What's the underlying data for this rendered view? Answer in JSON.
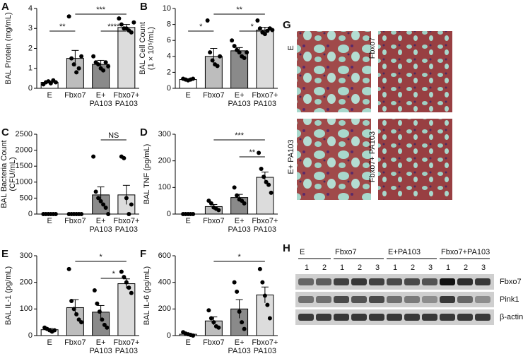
{
  "chart_data": [
    {
      "type": "bar",
      "panel": "A",
      "ylabel": [
        "BAL Protein (mg/mL)"
      ],
      "categories": [
        "E",
        "Fbxo7",
        "E+ PA103",
        "Fbxo7+ PA103"
      ],
      "values": [
        0.3,
        1.5,
        1.2,
        3.05
      ],
      "errors": [
        0.07,
        0.4,
        0.2,
        0.15
      ],
      "colors": [
        "#ffffff",
        "#bdbdbd",
        "#8a8a8a",
        "#dcdcdc"
      ],
      "points": [
        [
          0.2,
          0.3,
          0.35,
          0.25,
          0.4,
          0.3
        ],
        [
          3.6,
          1.5,
          1.2,
          0.8,
          1.0,
          1.6
        ],
        [
          1.6,
          1.3,
          1.2,
          1.0,
          0.9,
          1.3,
          1.1
        ],
        [
          3.5,
          3.2,
          3.0,
          3.0,
          2.9,
          2.8,
          3.3
        ]
      ],
      "ylim": [
        0,
        4
      ],
      "yticks": [
        0,
        1,
        2,
        3,
        4
      ],
      "significance": [
        {
          "from": 1,
          "to": 3,
          "label": "***"
        },
        {
          "from": 0,
          "to": 1,
          "label": "**"
        },
        {
          "from": 2,
          "to": 3,
          "label": "****"
        }
      ]
    },
    {
      "type": "bar",
      "panel": "B",
      "ylabel": [
        "BAL Cell Count",
        "(1 × 10⁵/mL)"
      ],
      "categories": [
        "E",
        "Fbxo7",
        "E+ PA103",
        "Fbxo7+ PA103"
      ],
      "values": [
        1.1,
        4.0,
        4.7,
        7.3
      ],
      "errors": [
        0.05,
        1.0,
        0.4,
        0.35
      ],
      "colors": [
        "#ffffff",
        "#bdbdbd",
        "#8a8a8a",
        "#dcdcdc"
      ],
      "points": [
        [
          1.2,
          1.1,
          1.0,
          1.1,
          1.2
        ],
        [
          8.5,
          4.5,
          3.5,
          3.0,
          2.8,
          4.0
        ],
        [
          6.0,
          5.3,
          4.8,
          4.5,
          4.0,
          3.8,
          4.5
        ],
        [
          8.5,
          7.5,
          7.0,
          6.8,
          7.2,
          7.5,
          7.3
        ]
      ],
      "ylim": [
        0,
        10
      ],
      "yticks": [
        0,
        2,
        4,
        6,
        8,
        10
      ],
      "significance": [
        {
          "from": 1,
          "to": 3,
          "label": "**"
        },
        {
          "from": 0,
          "to": 1,
          "label": "*"
        },
        {
          "from": 2,
          "to": 3,
          "label": "*"
        }
      ]
    },
    {
      "type": "bar",
      "panel": "C",
      "ylabel": [
        "BAL Bacteria Count",
        "(CFU/mL)"
      ],
      "categories": [
        "E",
        "Fbxo7",
        "E+ PA103",
        "Fbxo7+ PA103"
      ],
      "values": [
        0,
        0,
        600,
        600
      ],
      "errors": [
        0,
        0,
        250,
        300
      ],
      "colors": [
        "#ffffff",
        "#bdbdbd",
        "#8a8a8a",
        "#dcdcdc"
      ],
      "points": [
        [
          0,
          0,
          0,
          0,
          0,
          0
        ],
        [
          0,
          0,
          0,
          0,
          0,
          0
        ],
        [
          1800,
          700,
          500,
          400,
          300,
          200,
          0
        ],
        [
          1800,
          1750,
          500,
          0,
          300
        ]
      ],
      "ylim": [
        0,
        2500
      ],
      "yticks": [
        0,
        500,
        1000,
        1500,
        2000,
        2500
      ],
      "significance": [
        {
          "from": 2,
          "to": 3,
          "label": "NS"
        }
      ]
    },
    {
      "type": "bar",
      "panel": "D",
      "ylabel": [
        "BAL TNF (pg/mL)"
      ],
      "categories": [
        "E",
        "Fbxo7",
        "E+ PA103",
        "Fbxo7+ PA103"
      ],
      "values": [
        0,
        28,
        62,
        138
      ],
      "errors": [
        1,
        8,
        12,
        20
      ],
      "colors": [
        "#ffffff",
        "#bdbdbd",
        "#8a8a8a",
        "#dcdcdc"
      ],
      "points": [
        [
          0,
          0,
          0,
          0,
          0
        ],
        [
          50,
          40,
          25,
          20,
          15
        ],
        [
          100,
          70,
          55,
          50,
          40
        ],
        [
          230,
          170,
          140,
          120,
          110,
          80
        ]
      ],
      "ylim": [
        0,
        300
      ],
      "yticks": [
        0,
        100,
        200,
        300
      ],
      "significance": [
        {
          "from": 1,
          "to": 3,
          "label": "***"
        },
        {
          "from": 2,
          "to": 3,
          "label": "**"
        }
      ]
    },
    {
      "type": "bar",
      "panel": "E",
      "ylabel": [
        "BAL IL-1 (pg/mL)"
      ],
      "categories": [
        "E",
        "Fbxo7",
        "E+ PA103",
        "Fbxo7+ PA103"
      ],
      "values": [
        22,
        105,
        88,
        195
      ],
      "errors": [
        5,
        30,
        25,
        18
      ],
      "colors": [
        "#ffffff",
        "#bdbdbd",
        "#8a8a8a",
        "#dcdcdc"
      ],
      "points": [
        [
          30,
          25,
          20,
          15,
          20
        ],
        [
          250,
          130,
          100,
          80,
          60,
          50
        ],
        [
          170,
          120,
          90,
          60,
          40,
          30
        ],
        [
          240,
          220,
          200,
          180,
          160
        ]
      ],
      "ylim": [
        0,
        300
      ],
      "yticks": [
        0,
        100,
        200,
        300
      ],
      "significance": [
        {
          "from": 1,
          "to": 3,
          "label": "*"
        },
        {
          "from": 2,
          "to": 3,
          "label": "*"
        }
      ]
    },
    {
      "type": "bar",
      "panel": "F",
      "ylabel": [
        "BAL IL-6 (pg/mL)"
      ],
      "categories": [
        "E",
        "Fbxo7",
        "E+ PA103",
        "Fbxo7+ PA103"
      ],
      "values": [
        10,
        110,
        200,
        305
      ],
      "errors": [
        5,
        30,
        70,
        60
      ],
      "colors": [
        "#ffffff",
        "#bdbdbd",
        "#8a8a8a",
        "#dcdcdc"
      ],
      "points": [
        [
          25,
          15,
          10,
          5,
          0
        ],
        [
          190,
          130,
          100,
          70,
          60
        ],
        [
          400,
          330,
          180,
          100,
          50
        ],
        [
          500,
          400,
          300,
          230,
          130
        ]
      ],
      "ylim": [
        0,
        600
      ],
      "yticks": [
        0,
        200,
        400,
        600
      ],
      "significance": [
        {
          "from": 1,
          "to": 3,
          "label": "*"
        }
      ]
    }
  ],
  "histology": {
    "panel": "G",
    "labels": [
      "E",
      "Fbxo7",
      "E+ PA103",
      "Fbxo7+ PA103"
    ]
  },
  "blot": {
    "panel": "H",
    "groups": [
      "E",
      "Fbxo7",
      "E+PA103",
      "Fbxo7+PA103"
    ],
    "lanes": [
      "1",
      "2",
      "1",
      "2",
      "3",
      "1",
      "2",
      "3",
      "1",
      "2",
      "3"
    ],
    "rows": [
      "Fbxo7",
      "Pink1",
      "β-actin"
    ]
  }
}
